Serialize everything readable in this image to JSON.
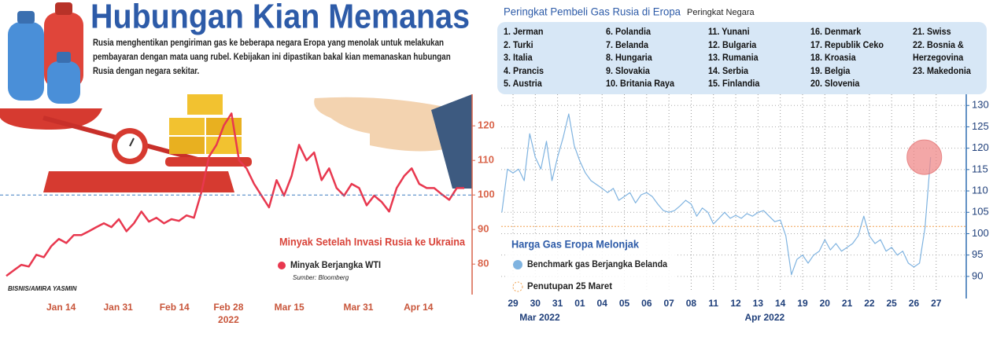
{
  "header": {
    "title": "Hubungan Kian Memanas",
    "body": "Rusia menghentikan pengiriman gas ke beberapa negara Eropa yang menolak untuk melakukan pembayaran dengan mata uang rubel. Kebijakan ini dipastikan bakal kian memanaskan hubungan Rusia dengan negara sekitar."
  },
  "credit": "BISNIS/AMIRA YASMIN",
  "ranking": {
    "title": "Peringkat Pembeli Gas Rusia di Eropa",
    "subtitle": "Peringkat Negara",
    "items": [
      "1. Jerman",
      "2. Turki",
      "3. Italia",
      "4. Prancis",
      "5. Austria",
      "6. Polandia",
      "7. Belanda",
      "8. Hungaria",
      "9. Slovakia",
      "10. Britania Raya",
      "11. Yunani",
      "12. Bulgaria",
      "13. Rumania",
      "14. Serbia",
      "15. Finlandia",
      "16. Denmark",
      "17. Republik Ceko",
      "18. Kroasia",
      "19. Belgia",
      "20. Slovenia",
      "21. Swiss",
      "22. Bosnia & Herzegovina",
      "23. Makedonia"
    ]
  },
  "chart_data": [
    {
      "type": "line",
      "title": "Minyak Setelah Invasi Rusia ke Ukraina",
      "source": "Sumber: Bloomberg",
      "series": [
        {
          "name": "Minyak Berjangka WTI",
          "color": "#e8384f",
          "values": [
            76.6,
            78.2,
            79.8,
            79.3,
            82.7,
            82,
            85.2,
            87.3,
            86.1,
            88.4,
            88.4,
            89.5,
            90.7,
            91.8,
            90.7,
            93,
            89.5,
            91.8,
            95.2,
            92.3,
            93.4,
            91.8,
            93,
            92.5,
            94.1,
            93.4,
            100.9,
            111.1,
            114.5,
            120.2,
            123.6,
            110,
            107.7,
            103.2,
            99.8,
            96.4,
            104.3,
            99.8,
            105.5,
            114.5,
            110,
            112.3,
            104.3,
            107.7,
            102,
            99.8,
            103.2,
            102,
            97,
            99.8,
            98,
            95.2,
            102,
            105.5,
            107.7,
            103.2,
            102,
            102,
            100.2,
            98.6,
            102,
            102
          ]
        }
      ],
      "xlim": [
        0,
        61
      ],
      "xticks": [
        {
          "value": 7.3,
          "label": "Jan 14"
        },
        {
          "value": 14.9,
          "label": "Jan 31"
        },
        {
          "value": 22.4,
          "label": "Feb 14"
        },
        {
          "value": 29.6,
          "label": "Feb 28"
        },
        {
          "value": 37.7,
          "label": "Mar 15"
        },
        {
          "value": 46.9,
          "label": "Mar 31"
        },
        {
          "value": 54.9,
          "label": "Apr 14"
        }
      ],
      "year_label": "2022",
      "ylim": [
        73,
        128
      ],
      "yticks": [
        80,
        90,
        100,
        110,
        120
      ],
      "reference_line": 100
    },
    {
      "type": "line",
      "title": "Harga Gas Eropa Melonjak",
      "series": [
        {
          "name": "Benchmark gas Berjangka Belanda",
          "color": "#7fb3e0",
          "values": [
            105.0,
            115.1,
            114.2,
            115.1,
            112.4,
            123.4,
            117.9,
            115.1,
            121.6,
            112.4,
            117.9,
            122.5,
            128.0,
            120.6,
            117.0,
            114.2,
            112.4,
            111.5,
            110.6,
            109.6,
            110.6,
            107.8,
            108.7,
            109.6,
            107.2,
            109.1,
            109.6,
            108.7,
            106.9,
            105.4,
            105.0,
            105.4,
            106.5,
            107.8,
            106.9,
            104.1,
            106.0,
            105.0,
            102.3,
            103.6,
            105.0,
            103.6,
            104.3,
            103.6,
            104.7,
            104.1,
            105.0,
            105.4,
            104.1,
            102.8,
            103.2,
            99.5,
            90.4,
            94.0,
            95.0,
            93.1,
            95.0,
            95.9,
            98.6,
            96.2,
            97.7,
            95.9,
            96.8,
            97.7,
            99.5,
            104.1,
            99.5,
            97.7,
            98.6,
            95.9,
            96.8,
            95.0,
            95.9,
            93.1,
            92.2,
            93.1,
            101.4,
            117.9
          ]
        }
      ],
      "x": [
        -0.5,
        -0.25,
        0,
        0.25,
        0.5,
        0.75,
        1,
        1.25,
        1.5,
        1.75,
        2,
        2.25,
        2.5,
        2.75,
        3,
        3.25,
        3.5,
        3.75,
        4,
        4.25,
        4.5,
        4.75,
        5,
        5.25,
        5.5,
        5.75,
        6,
        6.25,
        6.5,
        6.75,
        7,
        7.25,
        7.5,
        7.75,
        8,
        8.25,
        8.5,
        8.75,
        9,
        9.25,
        9.5,
        9.75,
        10,
        10.25,
        10.5,
        10.75,
        11,
        11.25,
        11.5,
        11.75,
        12,
        12.25,
        12.5,
        12.75,
        13,
        13.25,
        13.5,
        13.75,
        14,
        14.25,
        14.5,
        14.75,
        15,
        15.25,
        15.5,
        15.75,
        16,
        16.25,
        16.5,
        16.75,
        17,
        17.25,
        17.5,
        17.75,
        18,
        18.25,
        18.5,
        18.75
      ],
      "xlim": [
        -0.53,
        20.35
      ],
      "xticks": [
        {
          "value": 0,
          "label": "29"
        },
        {
          "value": 1,
          "label": "30"
        },
        {
          "value": 2,
          "label": "31"
        },
        {
          "value": 3,
          "label": "01"
        },
        {
          "value": 4,
          "label": "04"
        },
        {
          "value": 5,
          "label": "05"
        },
        {
          "value": 6,
          "label": "06"
        },
        {
          "value": 7,
          "label": "07"
        },
        {
          "value": 8,
          "label": "08"
        },
        {
          "value": 9,
          "label": "11"
        },
        {
          "value": 10,
          "label": "12"
        },
        {
          "value": 11,
          "label": "13"
        },
        {
          "value": 12,
          "label": "14"
        },
        {
          "value": 13,
          "label": "19"
        },
        {
          "value": 14,
          "label": "20"
        },
        {
          "value": 15,
          "label": "21"
        },
        {
          "value": 16,
          "label": "22"
        },
        {
          "value": 17,
          "label": "25"
        },
        {
          "value": 18,
          "label": "26"
        },
        {
          "value": 19,
          "label": "27"
        }
      ],
      "month_labels": [
        {
          "value": 1.2,
          "label": "Mar 2022"
        },
        {
          "value": 11.3,
          "label": "Apr 2022"
        }
      ],
      "ylim": [
        86.3,
        131.7
      ],
      "yticks": [
        90,
        95,
        100,
        105,
        110,
        115,
        120,
        125,
        130
      ],
      "grid": true,
      "reference": {
        "name": "Penutupan 25 Maret",
        "value": 101.7,
        "color": "#f0a050"
      }
    }
  ]
}
